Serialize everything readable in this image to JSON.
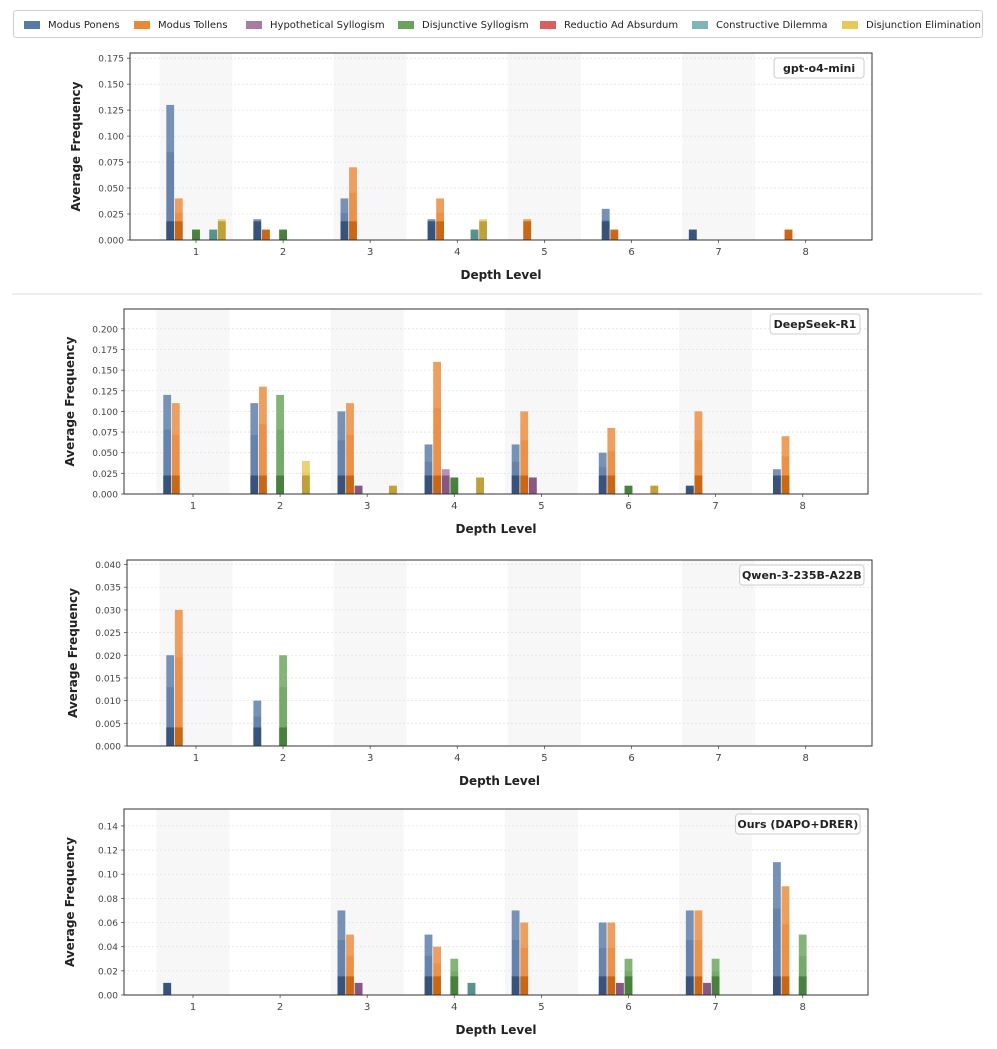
{
  "legend": [
    {
      "label": "Modus Ponens",
      "color": "#5878a6"
    },
    {
      "label": "Modus Tollens",
      "color": "#e8893a"
    },
    {
      "label": "Hypothetical Syllogism",
      "color": "#a97ba3"
    },
    {
      "label": "Disjunctive Syllogism",
      "color": "#69a35c"
    },
    {
      "label": "Reductio Ad Absurdum",
      "color": "#d9605e"
    },
    {
      "label": "Constructive Dilemma",
      "color": "#7fb5b2"
    },
    {
      "label": "Disjunction Elimination",
      "color": "#e7c85a"
    }
  ],
  "chart_data": [
    {
      "type": "bar",
      "title": "gpt-o4-mini",
      "xlabel": "Depth Level",
      "ylabel": "Average Frequency",
      "categories": [
        "1",
        "2",
        "3",
        "4",
        "5",
        "6",
        "7",
        "8"
      ],
      "ylim": [
        0,
        0.18
      ],
      "yticks": [
        "0.000",
        "0.025",
        "0.050",
        "0.075",
        "0.100",
        "0.125",
        "0.150",
        "0.175"
      ],
      "series": [
        {
          "name": "Modus Ponens",
          "values": [
            0.13,
            0.02,
            0.04,
            0.02,
            0,
            0.03,
            0.01,
            0
          ]
        },
        {
          "name": "Modus Tollens",
          "values": [
            0.04,
            0.01,
            0.07,
            0.04,
            0.02,
            0.01,
            0,
            0.01
          ]
        },
        {
          "name": "Hypothetical Syllogism",
          "values": [
            0,
            0,
            0,
            0,
            0,
            0,
            0,
            0
          ]
        },
        {
          "name": "Disjunctive Syllogism",
          "values": [
            0.01,
            0.01,
            0,
            0,
            0,
            0,
            0,
            0
          ]
        },
        {
          "name": "Reductio Ad Absurdum",
          "values": [
            0,
            0,
            0,
            0,
            0,
            0,
            0,
            0
          ]
        },
        {
          "name": "Constructive Dilemma",
          "values": [
            0.01,
            0,
            0,
            0.01,
            0,
            0,
            0,
            0
          ]
        },
        {
          "name": "Disjunction Elimination",
          "values": [
            0.02,
            0,
            0,
            0.02,
            0,
            0,
            0,
            0
          ]
        }
      ]
    },
    {
      "type": "bar",
      "title": "DeepSeek-R1",
      "xlabel": "Depth Level",
      "ylabel": "Average Frequency",
      "categories": [
        "1",
        "2",
        "3",
        "4",
        "5",
        "6",
        "7",
        "8"
      ],
      "ylim": [
        0,
        0.224
      ],
      "yticks": [
        "0.000",
        "0.025",
        "0.050",
        "0.075",
        "0.100",
        "0.125",
        "0.150",
        "0.175",
        "0.200"
      ],
      "series": [
        {
          "name": "Modus Ponens",
          "values": [
            0.12,
            0.11,
            0.1,
            0.06,
            0.06,
            0.05,
            0.01,
            0.03
          ]
        },
        {
          "name": "Modus Tollens",
          "values": [
            0.11,
            0.13,
            0.11,
            0.16,
            0.1,
            0.08,
            0.1,
            0.07
          ]
        },
        {
          "name": "Hypothetical Syllogism",
          "values": [
            0,
            0,
            0.01,
            0.03,
            0.02,
            0,
            0,
            0
          ]
        },
        {
          "name": "Disjunctive Syllogism",
          "values": [
            0,
            0.12,
            0,
            0.02,
            0,
            0.01,
            0,
            0
          ]
        },
        {
          "name": "Reductio Ad Absurdum",
          "values": [
            0,
            0,
            0,
            0,
            0,
            0,
            0,
            0
          ]
        },
        {
          "name": "Constructive Dilemma",
          "values": [
            0,
            0,
            0,
            0,
            0,
            0,
            0,
            0
          ]
        },
        {
          "name": "Disjunction Elimination",
          "values": [
            0,
            0.04,
            0.01,
            0.02,
            0,
            0.01,
            0,
            0
          ]
        }
      ]
    },
    {
      "type": "bar",
      "title": "Qwen-3-235B-A22B",
      "xlabel": "Depth Level",
      "ylabel": "Average Frequency",
      "categories": [
        "1",
        "2",
        "3",
        "4",
        "5",
        "6",
        "7",
        "8"
      ],
      "ylim": [
        0,
        0.041
      ],
      "yticks": [
        "0.000",
        "0.005",
        "0.010",
        "0.015",
        "0.020",
        "0.025",
        "0.030",
        "0.035",
        "0.040"
      ],
      "series": [
        {
          "name": "Modus Ponens",
          "values": [
            0.02,
            0.01,
            0,
            0,
            0,
            0,
            0,
            0
          ]
        },
        {
          "name": "Modus Tollens",
          "values": [
            0.03,
            0,
            0,
            0,
            0,
            0,
            0,
            0
          ]
        },
        {
          "name": "Hypothetical Syllogism",
          "values": [
            0,
            0,
            0,
            0,
            0,
            0,
            0,
            0
          ]
        },
        {
          "name": "Disjunctive Syllogism",
          "values": [
            0,
            0.02,
            0,
            0,
            0,
            0,
            0,
            0
          ]
        },
        {
          "name": "Reductio Ad Absurdum",
          "values": [
            0,
            0,
            0,
            0,
            0,
            0,
            0,
            0
          ]
        },
        {
          "name": "Constructive Dilemma",
          "values": [
            0,
            0,
            0,
            0,
            0,
            0,
            0,
            0
          ]
        },
        {
          "name": "Disjunction Elimination",
          "values": [
            0,
            0,
            0,
            0,
            0,
            0,
            0,
            0
          ]
        }
      ]
    },
    {
      "type": "bar",
      "title": "Ours (DAPO+DRER)",
      "xlabel": "Depth Level",
      "ylabel": "Average Frequency",
      "categories": [
        "1",
        "2",
        "3",
        "4",
        "5",
        "6",
        "7",
        "8"
      ],
      "ylim": [
        0,
        0.154
      ],
      "yticks": [
        "0.00",
        "0.02",
        "0.04",
        "0.06",
        "0.08",
        "0.10",
        "0.12",
        "0.14"
      ],
      "series": [
        {
          "name": "Modus Ponens",
          "values": [
            0.01,
            0,
            0.07,
            0.05,
            0.07,
            0.06,
            0.07,
            0.11
          ]
        },
        {
          "name": "Modus Tollens",
          "values": [
            0,
            0,
            0.05,
            0.04,
            0.06,
            0.06,
            0.07,
            0.09
          ]
        },
        {
          "name": "Hypothetical Syllogism",
          "values": [
            0,
            0,
            0.01,
            0,
            0,
            0.01,
            0.01,
            0
          ]
        },
        {
          "name": "Disjunctive Syllogism",
          "values": [
            0,
            0,
            0,
            0.03,
            0,
            0.03,
            0.03,
            0.05
          ]
        },
        {
          "name": "Reductio Ad Absurdum",
          "values": [
            0,
            0,
            0,
            0,
            0,
            0,
            0,
            0
          ]
        },
        {
          "name": "Constructive Dilemma",
          "values": [
            0,
            0,
            0,
            0.01,
            0,
            0,
            0,
            0
          ]
        },
        {
          "name": "Disjunction Elimination",
          "values": [
            0,
            0,
            0,
            0,
            0,
            0,
            0,
            0
          ]
        }
      ]
    }
  ]
}
